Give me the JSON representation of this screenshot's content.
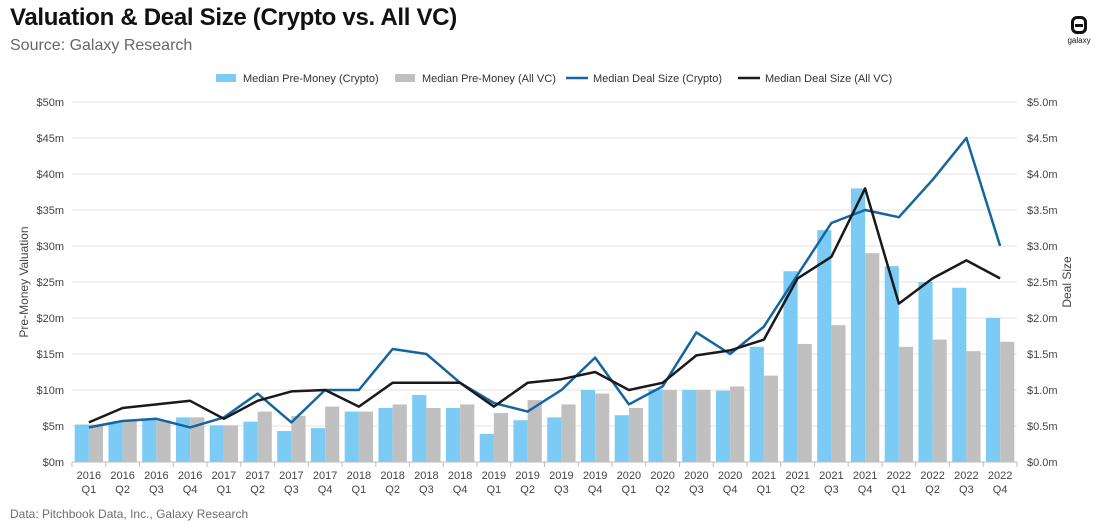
{
  "header": {
    "title": "Valuation & Deal Size (Crypto vs. All VC)",
    "subtitle": "Source: Galaxy Research"
  },
  "footer": {
    "source_note": "Data: Pitchbook Data, Inc., Galaxy Research"
  },
  "logo": {
    "text": "galaxy"
  },
  "colors": {
    "crypto_bar": "#7ccbf5",
    "allvc_bar": "#c0c0c0",
    "crypto_line": "#1565a0",
    "allvc_line": "#1a1a1a",
    "grid": "#e3e3e3",
    "axis_text": "#444444"
  },
  "chart_data": {
    "type": "bar",
    "title": "Valuation & Deal Size (Crypto vs. All VC)",
    "categories": [
      [
        "2016",
        "Q1"
      ],
      [
        "2016",
        "Q2"
      ],
      [
        "2016",
        "Q3"
      ],
      [
        "2016",
        "Q4"
      ],
      [
        "2017",
        "Q1"
      ],
      [
        "2017",
        "Q2"
      ],
      [
        "2017",
        "Q3"
      ],
      [
        "2017",
        "Q4"
      ],
      [
        "2018",
        "Q1"
      ],
      [
        "2018",
        "Q2"
      ],
      [
        "2018",
        "Q3"
      ],
      [
        "2018",
        "Q4"
      ],
      [
        "2019",
        "Q1"
      ],
      [
        "2019",
        "Q2"
      ],
      [
        "2019",
        "Q3"
      ],
      [
        "2019",
        "Q4"
      ],
      [
        "2020",
        "Q1"
      ],
      [
        "2020",
        "Q2"
      ],
      [
        "2020",
        "Q3"
      ],
      [
        "2020",
        "Q4"
      ],
      [
        "2021",
        "Q1"
      ],
      [
        "2021",
        "Q2"
      ],
      [
        "2021",
        "Q3"
      ],
      [
        "2021",
        "Q4"
      ],
      [
        "2022",
        "Q1"
      ],
      [
        "2022",
        "Q2"
      ],
      [
        "2022",
        "Q3"
      ],
      [
        "2022",
        "Q4"
      ]
    ],
    "ylabel": "Pre-Money Valuation",
    "y2label": "Deal Size",
    "ylim": [
      0,
      50
    ],
    "y2lim": [
      0,
      5
    ],
    "yticks": [
      "$0m",
      "$5m",
      "$10m",
      "$15m",
      "$20m",
      "$25m",
      "$30m",
      "$35m",
      "$40m",
      "$45m",
      "$50m"
    ],
    "y2ticks": [
      "$0.0m",
      "$0.5m",
      "$1.0m",
      "$1.5m",
      "$2.0m",
      "$2.5m",
      "$3.0m",
      "$3.5m",
      "$4.0m",
      "$4.5m",
      "$5.0m"
    ],
    "legend_position": "top-center",
    "grid": true,
    "series": [
      {
        "name": "Median Pre-Money (Crypto)",
        "kind": "bar",
        "axis": "left",
        "values": [
          5.2,
          5.5,
          6.0,
          6.2,
          5.1,
          5.6,
          4.3,
          4.7,
          7.0,
          7.5,
          9.3,
          7.5,
          3.9,
          5.8,
          6.2,
          10.0,
          6.5,
          10.1,
          10.0,
          9.9,
          16.0,
          26.5,
          32.2,
          38.0,
          27.2,
          25.0,
          24.2,
          20.0
        ]
      },
      {
        "name": "Median Pre-Money (All VC)",
        "kind": "bar",
        "axis": "left",
        "values": [
          5.2,
          5.8,
          5.8,
          6.2,
          5.1,
          7.0,
          6.4,
          7.7,
          7.0,
          8.0,
          7.5,
          8.0,
          6.8,
          8.6,
          8.0,
          9.5,
          7.5,
          10.0,
          10.0,
          10.5,
          12.0,
          16.4,
          19.0,
          29.0,
          16.0,
          17.0,
          15.4,
          16.7
        ]
      },
      {
        "name": "Median Deal Size (Crypto)",
        "kind": "line",
        "axis": "right",
        "values": [
          0.48,
          0.57,
          0.6,
          0.48,
          0.62,
          0.95,
          0.55,
          1.0,
          1.0,
          1.57,
          1.5,
          1.1,
          0.82,
          0.7,
          1.0,
          1.45,
          0.8,
          1.05,
          1.8,
          1.5,
          1.88,
          2.6,
          3.32,
          3.5,
          3.4,
          3.92,
          4.5,
          3.0
        ]
      },
      {
        "name": "Median Deal Size (All VC)",
        "kind": "line",
        "axis": "right",
        "values": [
          0.55,
          0.75,
          0.8,
          0.85,
          0.6,
          0.85,
          0.98,
          1.0,
          0.77,
          1.1,
          1.1,
          1.1,
          0.77,
          1.1,
          1.15,
          1.25,
          1.0,
          1.1,
          1.48,
          1.55,
          1.7,
          2.55,
          2.85,
          3.8,
          2.2,
          2.55,
          2.8,
          2.55
        ]
      }
    ]
  }
}
